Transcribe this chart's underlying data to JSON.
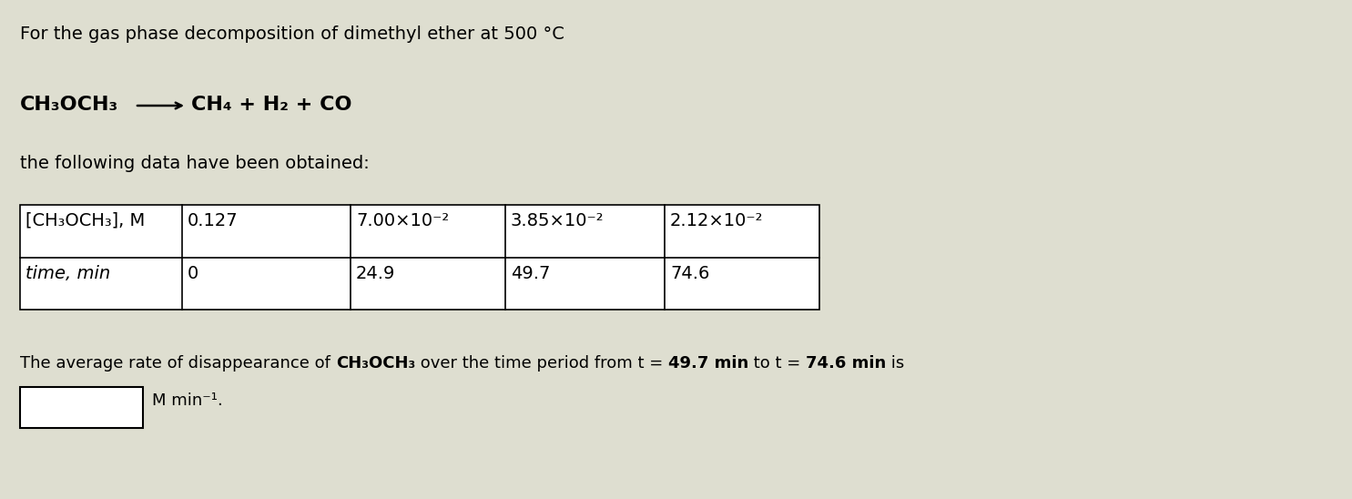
{
  "bg_color": "#deded0",
  "title_line": "For the gas phase decomposition of dimethyl ether at 500 °C",
  "data_line": "the following data have been obtained:",
  "table": {
    "row1_label": "[CH₃OCH₃], M",
    "row1_values": [
      "0.127",
      "7.00×10⁻²",
      "3.85×10⁻²",
      "2.12×10⁻²"
    ],
    "row2_label": "time, min",
    "row2_values": [
      "0",
      "24.9",
      "49.7",
      "74.6"
    ]
  },
  "bottom_seg1": "The average rate of disappearance of ",
  "bottom_seg2": "CH₃OCH₃",
  "bottom_seg3": " over the time period from t = ",
  "bottom_seg4": "49.7 min",
  "bottom_seg5": " to t = ",
  "bottom_seg6": "74.6 min",
  "bottom_seg7": " is",
  "units_text": "M min⁻¹.",
  "font_size_title": 14,
  "font_size_reaction": 16,
  "font_size_table": 14,
  "font_size_bottom": 13
}
